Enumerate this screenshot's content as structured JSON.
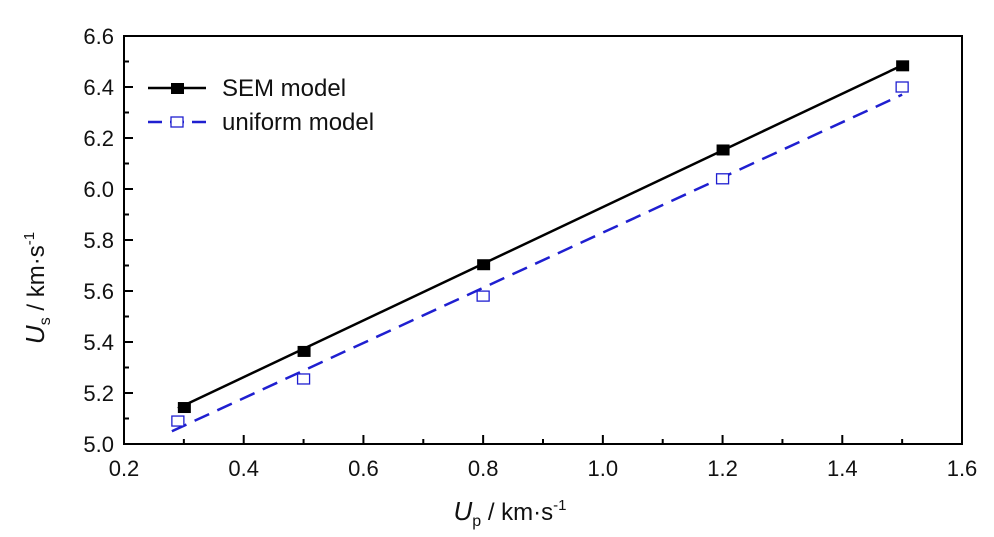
{
  "chart_data": {
    "type": "line",
    "xlabel": {
      "main": "U",
      "sub": "p",
      "unit": " / km·s",
      "sup": "-1"
    },
    "ylabel": {
      "main": "U",
      "sub": "s",
      "unit": " / km·s",
      "sup": "-1"
    },
    "xlim": [
      0.2,
      1.6
    ],
    "ylim": [
      5.0,
      6.6
    ],
    "xticks": [
      0.2,
      0.4,
      0.6,
      0.8,
      1.0,
      1.2,
      1.4,
      1.6
    ],
    "xtick_labels": [
      "0.2",
      "0.4",
      "0.6",
      "0.8",
      "1.0",
      "1.2",
      "1.4",
      "1.6"
    ],
    "yticks": [
      5.0,
      5.2,
      5.4,
      5.6,
      5.8,
      6.0,
      6.2,
      6.4,
      6.6
    ],
    "ytick_labels": [
      "5.0",
      "5.2",
      "5.4",
      "5.6",
      "5.8",
      "6.0",
      "6.2",
      "6.4",
      "6.6"
    ],
    "grid": false,
    "legend_position": "top-left",
    "series": [
      {
        "name": "SEM model",
        "color": "#000000",
        "line_style": "solid",
        "marker": "filled-square",
        "points": [
          {
            "x": 0.3,
            "y": 5.145
          },
          {
            "x": 0.5,
            "y": 5.365
          },
          {
            "x": 0.8,
            "y": 5.705
          },
          {
            "x": 1.2,
            "y": 6.155
          },
          {
            "x": 1.5,
            "y": 6.485
          }
        ],
        "line": {
          "x": [
            0.29,
            1.5
          ],
          "y": [
            5.14,
            6.485
          ]
        }
      },
      {
        "name": "uniform model",
        "color": "#1f1fd0",
        "line_style": "dashed",
        "marker": "open-square",
        "points": [
          {
            "x": 0.29,
            "y": 5.09
          },
          {
            "x": 0.5,
            "y": 5.255
          },
          {
            "x": 0.8,
            "y": 5.58
          },
          {
            "x": 1.2,
            "y": 6.04
          },
          {
            "x": 1.5,
            "y": 6.4
          }
        ],
        "line": {
          "x": [
            0.28,
            1.5
          ],
          "y": [
            5.05,
            6.37
          ]
        }
      }
    ]
  }
}
